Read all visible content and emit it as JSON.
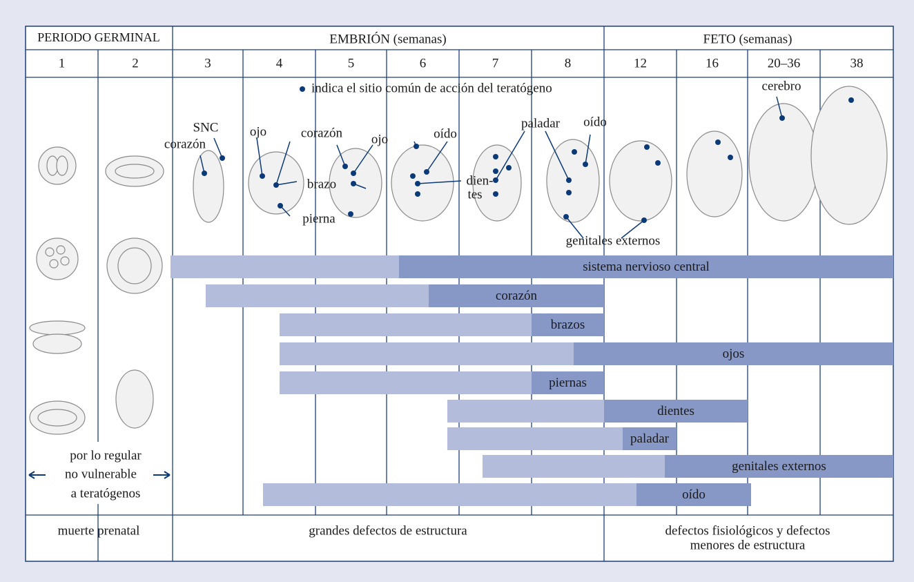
{
  "header": {
    "germinal": "PERIODO GERMINAL",
    "embryo": "EMBRIÓN (semanas)",
    "fetus": "FETO (semanas)"
  },
  "weeks": [
    "1",
    "2",
    "3",
    "4",
    "5",
    "6",
    "7",
    "8",
    "12",
    "16",
    "20–36",
    "38"
  ],
  "legend": "indica el sitio común de acción del teratógeno",
  "figure_labels": [
    "SNC",
    "corazón",
    "ojo",
    "corazón",
    "ojo",
    "brazo",
    "pierna",
    "oído",
    "dien-",
    "tes",
    "paladar",
    "oído",
    "genitales externos",
    "cerebro"
  ],
  "vulnerability_note": [
    "por lo regular",
    "no vulnerable",
    "a teratógenos"
  ],
  "sensitivity_bars": [
    "sistema nervioso central",
    "corazón",
    "brazos",
    "ojos",
    "piernas",
    "dientes",
    "paladar",
    "genitales externos",
    "oído"
  ],
  "outcomes": [
    "muerte prenatal",
    "grandes defectos de estructura",
    "defectos fisiológicos y defectos",
    "menores de estructura"
  ]
}
